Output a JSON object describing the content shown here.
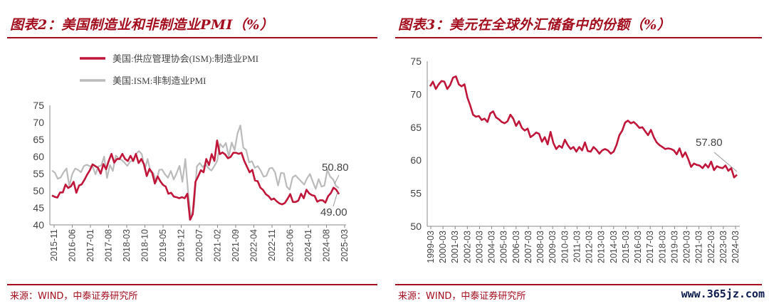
{
  "chart_data": [
    {
      "type": "line",
      "title": "图表2：美国制造业和非制造业PMI（%）",
      "source": "来源：WIND，中泰证券研究所",
      "ylim": [
        40,
        75
      ],
      "yticks": [
        "40",
        "45",
        "50",
        "55",
        "60",
        "65",
        "70",
        "75"
      ],
      "x_tick_labels": [
        "2015-11",
        "2016-06",
        "2017-01",
        "2017-08",
        "2018-03",
        "2018-10",
        "2019-05",
        "2019-12",
        "2020-07",
        "2021-02",
        "2021-09",
        "2022-04",
        "2022-11",
        "2023-06",
        "2024-01",
        "2024-08",
        "2025-03"
      ],
      "series": [
        {
          "name": "美国:供应管理协会(ISM):制造业PMI",
          "color": "#c0163a",
          "values": [
            48.6,
            48.2,
            48.0,
            49.5,
            49.5,
            51.8,
            50.8,
            51.3,
            52.6,
            49.4,
            51.5,
            51.9,
            53.2,
            54.7,
            56.0,
            57.7,
            57.2,
            56.7,
            55.0,
            57.8,
            56.3,
            58.8,
            60.8,
            58.2,
            59.3,
            59.3,
            60.8,
            59.3,
            58.7,
            60.2,
            58.7,
            60.8,
            58.1,
            59.3,
            57.7,
            54.3,
            56.4,
            55.3,
            52.1,
            54.2,
            52.8,
            51.7,
            51.2,
            49.1,
            49.4,
            48.3,
            48.1,
            47.8,
            48.1,
            47.8,
            49.1,
            41.5,
            43.1,
            52.6,
            54.2,
            56.0,
            55.4,
            59.3,
            57.5,
            60.7,
            58.7,
            64.7,
            60.7,
            61.2,
            60.6,
            59.5,
            59.9,
            61.1,
            61.1,
            60.8,
            61.1,
            58.8,
            57.1,
            55.4,
            56.1,
            53.0,
            52.8,
            50.9,
            50.2,
            49.0,
            48.4,
            47.4,
            47.7,
            46.9,
            46.3,
            46.0,
            46.4,
            47.6,
            49.0,
            46.7,
            46.7,
            47.1,
            49.1,
            47.8,
            50.3,
            49.2,
            48.7,
            48.5,
            46.8,
            47.2,
            47.2,
            46.5,
            48.4,
            49.3,
            50.9,
            50.3,
            49.0
          ]
        },
        {
          "name": "美国:ISM:非制造业PMI",
          "color": "#bbbbbb",
          "values": [
            55.9,
            55.3,
            53.5,
            53.9,
            55.4,
            56.5,
            51.4,
            54.9,
            56.5,
            56.1,
            55.4,
            57.2,
            57.6,
            57.2,
            57.1,
            54.8,
            57.1,
            57.4,
            60.0,
            53.7,
            57.5,
            55.8,
            60.3,
            59.5,
            59.0,
            58.2,
            57.3,
            58.6,
            58.7,
            60.8,
            61.6,
            60.7,
            56.2,
            59.3,
            55.5,
            55.1,
            52.6,
            56.1,
            56.2,
            54.8,
            53.8,
            55.8,
            53.3,
            55.1,
            57.3,
            52.6,
            59.3,
            49.3,
            41.8,
            45.4,
            57.1,
            58.1,
            56.9,
            57.8,
            56.6,
            55.9,
            57.2,
            58.7,
            63.7,
            62.7,
            64.0,
            60.1,
            64.1,
            61.9,
            66.7,
            69.1,
            62.6,
            61.9,
            58.3,
            58.6,
            56.7,
            57.2,
            55.9,
            54.1,
            54.4,
            56.5,
            56.7,
            55.3,
            51.5,
            55.2,
            55.1,
            51.2,
            50.3,
            53.9,
            54.5,
            53.6,
            52.7,
            51.8,
            53.6,
            54.9,
            52.6,
            50.5,
            53.4,
            51.2,
            51.5,
            56.1,
            54.1,
            53.3,
            51.4,
            50.8
          ]
        }
      ],
      "annotations": [
        "50.80",
        "49.00"
      ]
    },
    {
      "type": "line",
      "title": "图表3：美元在全球外汇储备中的份额（%）",
      "source": "来源：WIND，中泰证券研究所",
      "ylim": [
        50,
        75
      ],
      "yticks": [
        "50",
        "55",
        "60",
        "65",
        "70",
        "75"
      ],
      "x_tick_labels": [
        "1999-03",
        "2000-03",
        "2001-03",
        "2002-03",
        "2003-03",
        "2004-03",
        "2005-03",
        "2006-03",
        "2007-03",
        "2008-03",
        "2009-03",
        "2010-03",
        "2011-03",
        "2012-03",
        "2013-03",
        "2014-03",
        "2015-03",
        "2016-03",
        "2017-03",
        "2018-03",
        "2019-03",
        "2020-03",
        "2021-03",
        "2022-03",
        "2023-03",
        "2024-03"
      ],
      "series": [
        {
          "name": "美元份额",
          "color": "#c0163a",
          "values": [
            71.2,
            71.9,
            70.8,
            71.5,
            72.0,
            71.9,
            70.8,
            71.4,
            72.5,
            72.7,
            71.5,
            71.2,
            71.5,
            69.5,
            68.3,
            66.9,
            66.6,
            66.7,
            66.1,
            66.3,
            65.8,
            67.1,
            67.4,
            66.5,
            66.2,
            65.8,
            65.6,
            65.9,
            66.9,
            66.3,
            65.2,
            65.9,
            64.9,
            64.5,
            64.8,
            63.5,
            63.8,
            64.2,
            64.0,
            62.8,
            63.5,
            62.4,
            64.3,
            62.6,
            61.7,
            62.2,
            61.9,
            63.1,
            62.3,
            61.7,
            62.0,
            61.3,
            62.0,
            61.5,
            62.7,
            61.4,
            61.3,
            62.0,
            61.6,
            61.0,
            61.5,
            61.7,
            61.5,
            61.0,
            61.3,
            62.3,
            63.8,
            64.5,
            65.7,
            66.0,
            65.6,
            65.8,
            65.4,
            64.9,
            65.0,
            64.4,
            63.8,
            64.6,
            63.5,
            62.7,
            62.3,
            62.0,
            61.7,
            61.8,
            61.7,
            61.5,
            60.9,
            61.8,
            60.5,
            61.2,
            60.2,
            59.0,
            59.5,
            59.3,
            59.2,
            58.8,
            59.4,
            58.9,
            59.8,
            58.5,
            59.1,
            58.9,
            58.8,
            59.2,
            58.4,
            58.8,
            57.4,
            57.8
          ]
        }
      ],
      "annotations": [
        "57.80"
      ]
    }
  ],
  "watermark": "www.365jz.com"
}
